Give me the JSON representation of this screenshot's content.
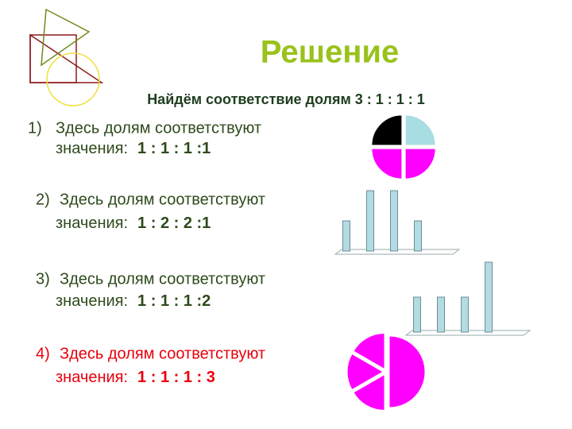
{
  "title": "Решение",
  "subtitle": "Найдём соответствие долям 3 : 1 : 1 : 1",
  "items": [
    {
      "number": "1)",
      "text": "Здесь долям соответствуют",
      "label": "значения:",
      "ratio": "1 : 1 : 1 :1",
      "color": "#2e4a1c",
      "chart": {
        "type": "pie",
        "values": [
          1,
          1,
          1,
          1
        ],
        "colors": [
          "#a8dde4",
          "#ff00ff",
          "#ff00ff",
          "#000000"
        ]
      }
    },
    {
      "number": "2)",
      "text": "Здесь долям соответствуют",
      "label": "значения:",
      "ratio": "1 : 2 : 2 :1",
      "color": "#2e4a1c",
      "chart": {
        "type": "bar",
        "values": [
          1,
          2,
          2,
          1
        ],
        "color": "#b3dbe2"
      }
    },
    {
      "number": "3)",
      "text": "Здесь долям соответствуют",
      "label": "значения:",
      "ratio": "1 : 1 : 1 :2",
      "color": "#2e4a1c",
      "chart": {
        "type": "bar",
        "values": [
          1,
          1,
          1,
          2
        ],
        "color": "#b3dbe2"
      }
    },
    {
      "number": "4)",
      "text": "Здесь долям соответствуют",
      "label": "значения:",
      "ratio": "1 : 1 : 1 : 3",
      "color": "#e8000b",
      "chart": {
        "type": "pie",
        "values": [
          3,
          1,
          1,
          1
        ],
        "colors": [
          "#ff00ff",
          "#ff00ff",
          "#ff00ff",
          "#ff00ff"
        ]
      }
    }
  ]
}
